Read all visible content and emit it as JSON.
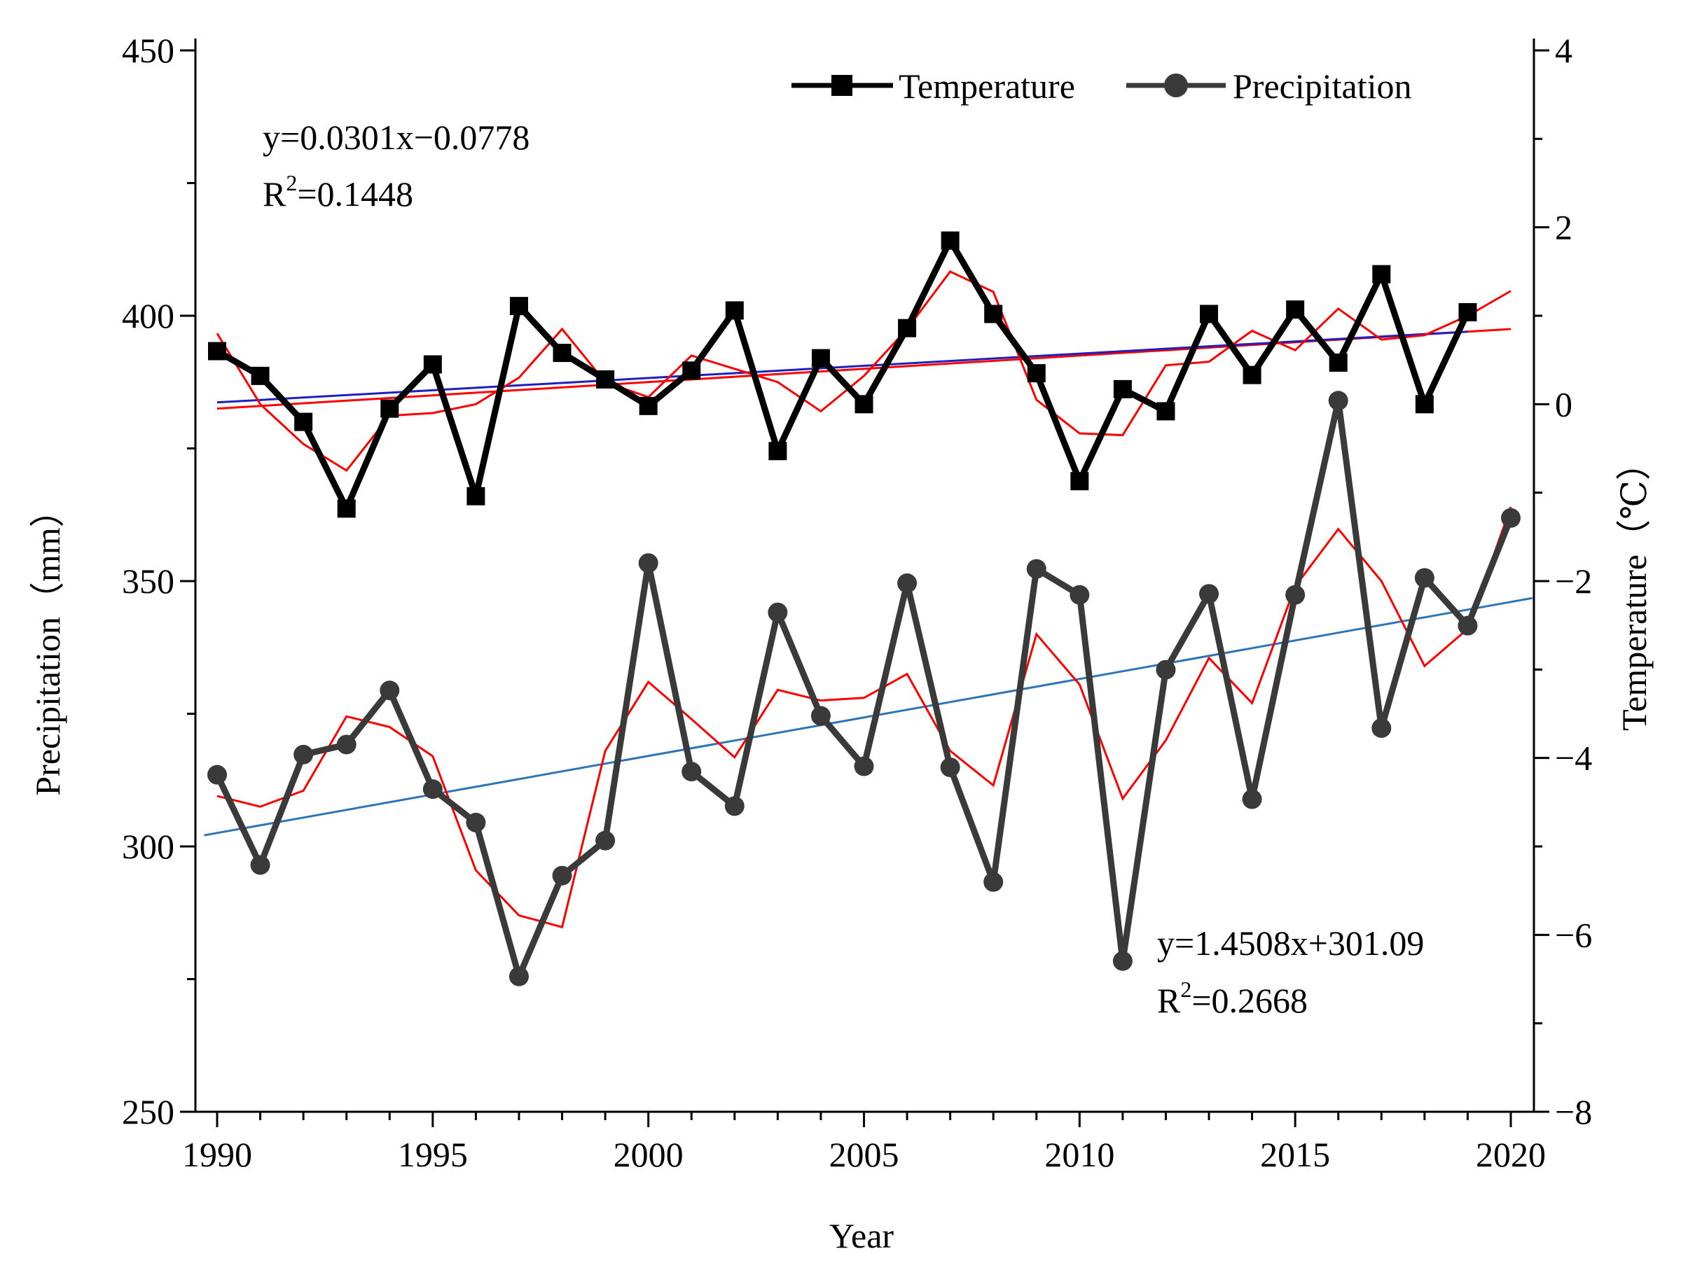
{
  "chart_data": {
    "type": "line",
    "x": [
      1990,
      1991,
      1992,
      1993,
      1994,
      1995,
      1996,
      1997,
      1998,
      1999,
      2000,
      2001,
      2002,
      2003,
      2004,
      2005,
      2006,
      2007,
      2008,
      2009,
      2010,
      2011,
      2012,
      2013,
      2014,
      2015,
      2016,
      2017,
      2018,
      2019,
      2020
    ],
    "xlabel": "Year",
    "xlim": [
      1990,
      2020
    ],
    "xticks": [
      "1990",
      "1995",
      "2000",
      "2005",
      "2010",
      "2015",
      "2020"
    ],
    "ylabel_left": "Precipitation（mm）",
    "ylim_left": [
      250,
      450
    ],
    "yticks_left": [
      "250",
      "300",
      "350",
      "400",
      "450"
    ],
    "ylabel_right": "Temperature（℃）",
    "ylim_right": [
      -8,
      4
    ],
    "yticks_right": [
      "−8",
      "−6",
      "−4",
      "−2",
      "0",
      "2",
      "4"
    ],
    "series": [
      {
        "name": "Temperature",
        "axis": "right",
        "marker": "square",
        "color": "#000000",
        "values": [
          0.6,
          0.32,
          -0.2,
          -1.18,
          -0.05,
          0.45,
          -1.04,
          1.11,
          0.58,
          0.28,
          -0.02,
          0.38,
          1.06,
          -0.53,
          0.52,
          0.0,
          0.86,
          1.85,
          1.02,
          0.35,
          -0.87,
          0.17,
          -0.08,
          1.02,
          0.33,
          1.07,
          0.47,
          1.47,
          0.0,
          1.04,
          null
        ],
        "moving_average": [
          0.8,
          0.0,
          -0.45,
          -0.75,
          -0.13,
          -0.1,
          0.0,
          0.3,
          0.85,
          0.25,
          0.08,
          0.55,
          0.4,
          0.25,
          -0.08,
          0.32,
          0.85,
          1.5,
          1.27,
          0.05,
          -0.33,
          -0.35,
          0.44,
          0.48,
          0.83,
          0.61,
          1.08,
          0.73,
          0.78,
          1.0,
          1.28
        ]
      },
      {
        "name": "Precipitation",
        "axis": "left",
        "marker": "circle",
        "color": "#3a3a3a",
        "values": [
          313.5,
          296.5,
          317.3,
          319.2,
          329.4,
          310.8,
          304.5,
          275.5,
          294.5,
          301.1,
          353.4,
          314.1,
          307.6,
          344.1,
          324.6,
          315.1,
          349.6,
          314.9,
          293.3,
          352.3,
          347.4,
          278.4,
          333.3,
          347.6,
          308.9,
          347.4,
          384.0,
          322.3,
          350.6,
          341.6,
          361.9
        ],
        "moving_average": [
          309.5,
          307.5,
          310.5,
          324.5,
          322.5,
          317.0,
          295.5,
          287.0,
          284.8,
          318.0,
          331.0,
          324.0,
          316.8,
          329.5,
          327.5,
          328.0,
          332.5,
          318.0,
          311.5,
          340.0,
          330.5,
          309.0,
          320.0,
          335.5,
          327.0,
          349.0,
          359.8,
          350.0,
          334.0,
          341.0,
          364.0
        ]
      }
    ],
    "trendlines": [
      {
        "series": "Temperature",
        "equation": "y=0.0301x−0.0778",
        "r2_label": "R",
        "r2_sup": "2",
        "r2_value": "=0.1448",
        "color_fit": "#1f1fbf",
        "color_ref": "#ff0000",
        "x_range": [
          1990,
          2019
        ],
        "y_range": [
          0.02,
          0.82
        ],
        "ref_x_range": [
          1990,
          2020
        ],
        "ref_y_range": [
          -0.05,
          0.85
        ]
      },
      {
        "series": "Precipitation",
        "equation": "y=1.4508x+301.09",
        "r2_label": "R",
        "r2_sup": "2",
        "r2_value": "=0.2668",
        "color_fit": "#2e75b6",
        "x_range": [
          1989.7,
          2020.5
        ],
        "y_range": [
          302.1,
          346.8
        ]
      }
    ],
    "legend": {
      "placement": "top-right",
      "entries": [
        "Temperature",
        "Precipitation"
      ]
    },
    "grid": false
  }
}
